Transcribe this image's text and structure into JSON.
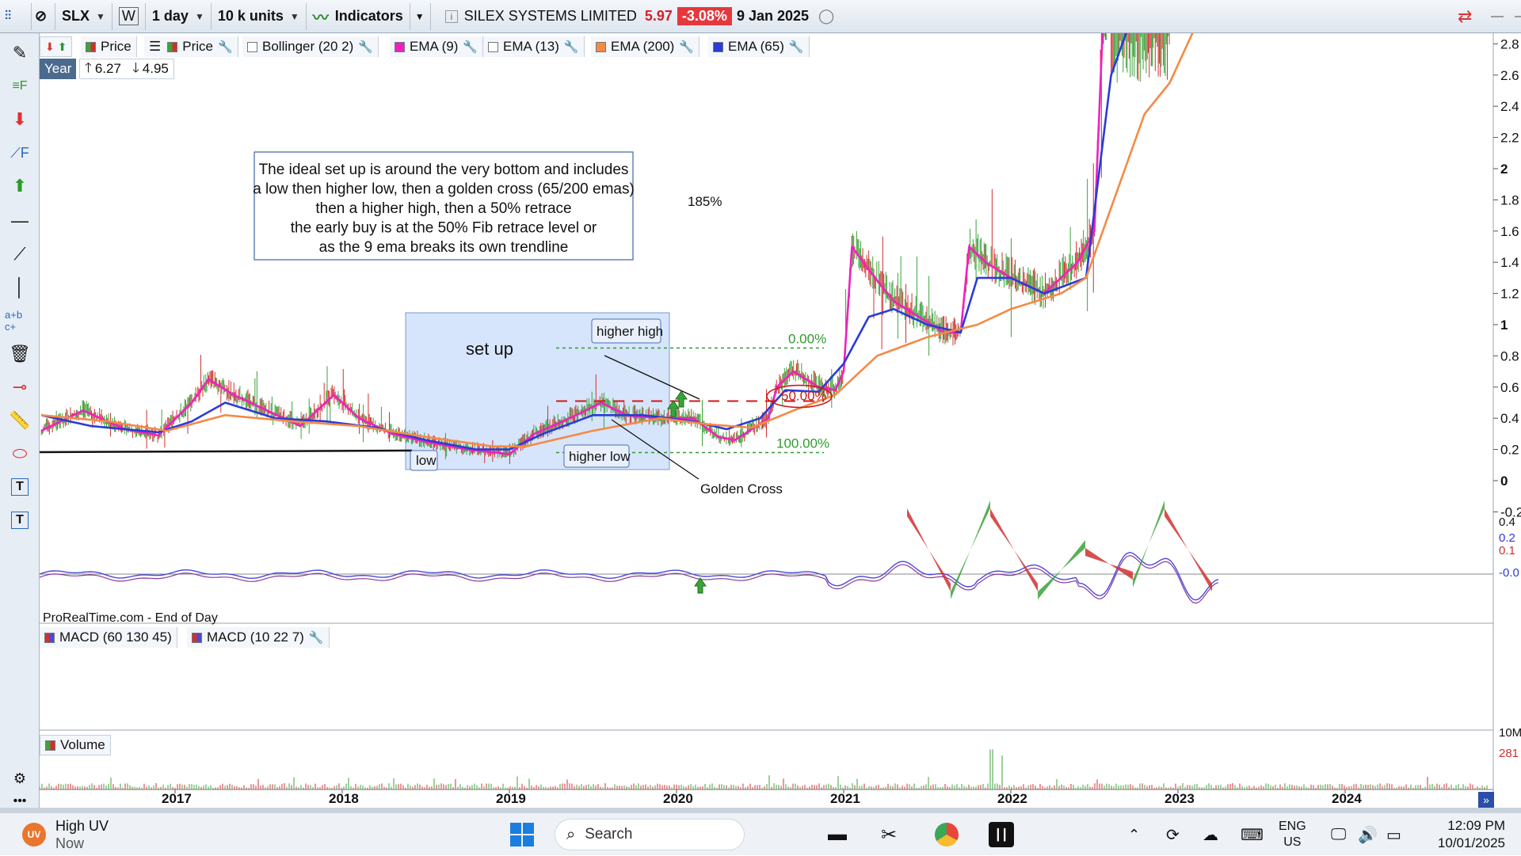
{
  "toolbar": {
    "symbol": "SLX",
    "period_w": "W",
    "interval": "1 day",
    "units": "10 k units",
    "indicators_label": "Indicators",
    "instrument_name": "SILEX SYSTEMS LIMITED",
    "last_price": "5.97",
    "change": "-3.08%",
    "date": "9 Jan 2025"
  },
  "legend": {
    "price1": "Price",
    "price2": "Price",
    "bollinger": "Bollinger (20 2)",
    "ema9": "EMA (9)",
    "ema13": "EMA (13)",
    "ema200": "EMA (200)",
    "ema65": "EMA (65)",
    "range_label": "Year",
    "range_high": "6.27",
    "range_low": "4.95",
    "source": "ProRealTime.com - End of Day",
    "macd1": "MACD (60 130 45)",
    "macd2": "MACD (10 22 7)",
    "volume": "Volume"
  },
  "colors": {
    "ema9": "#f020c0",
    "ema65": "#2a3bd8",
    "ema200": "#f58a45",
    "price_up": "#3aa33a",
    "price_down": "#d03030",
    "setup_box": "#cfe0fa",
    "fib_green": "#2f9a2f",
    "fib_red": "#d01818"
  },
  "annotations": {
    "note_lines": [
      "The ideal set up is around the very bottom and includes",
      "a low then higher low, then a golden cross (65/200 emas)",
      "then a higher high, then a 50% retrace",
      "the early buy is at the 50% Fib retrace level or",
      "as the 9 ema breaks its own trendline"
    ],
    "setup": "set up",
    "low": "low",
    "higher_low": "higher low",
    "higher_high": "higher high",
    "golden_cross": "Golden Cross",
    "gain": "185%",
    "fib_0": "0.00%",
    "fib_50": "50.00%",
    "fib_100": "100.00%"
  },
  "chart_data": {
    "type": "line",
    "x_axis": [
      "2017",
      "2018",
      "2019",
      "2020",
      "2021",
      "2022",
      "2023",
      "2024"
    ],
    "y_ticks": [
      "2.8",
      "2.6",
      "2.4",
      "2.2",
      "2",
      "1.8",
      "1.6",
      "1.4",
      "1.2",
      "1",
      "0.8",
      "0.6",
      "0.4",
      "0.2",
      "0",
      "-0.2"
    ],
    "ylim": [
      -0.2,
      2.9
    ],
    "fib_levels": {
      "0%": 0.85,
      "50%": 0.51,
      "100%": 0.18
    },
    "series": [
      {
        "name": "EMA (9)",
        "points": [
          [
            2016.2,
            0.32
          ],
          [
            2016.45,
            0.45
          ],
          [
            2016.7,
            0.33
          ],
          [
            2016.9,
            0.29
          ],
          [
            2017.1,
            0.5
          ],
          [
            2017.2,
            0.65
          ],
          [
            2017.35,
            0.55
          ],
          [
            2017.55,
            0.45
          ],
          [
            2017.75,
            0.35
          ],
          [
            2017.95,
            0.55
          ],
          [
            2018.1,
            0.4
          ],
          [
            2018.3,
            0.3
          ],
          [
            2018.5,
            0.25
          ],
          [
            2018.75,
            0.2
          ],
          [
            2019.0,
            0.17
          ],
          [
            2019.15,
            0.3
          ],
          [
            2019.4,
            0.42
          ],
          [
            2019.55,
            0.5
          ],
          [
            2019.7,
            0.42
          ],
          [
            2019.9,
            0.4
          ],
          [
            2020.1,
            0.4
          ],
          [
            2020.25,
            0.28
          ],
          [
            2020.35,
            0.26
          ],
          [
            2020.55,
            0.4
          ],
          [
            2020.6,
            0.6
          ],
          [
            2020.7,
            0.7
          ],
          [
            2020.85,
            0.6
          ],
          [
            2020.95,
            0.58
          ],
          [
            2021.0,
            0.7
          ],
          [
            2021.05,
            1.5
          ],
          [
            2021.15,
            1.35
          ],
          [
            2021.3,
            1.15
          ],
          [
            2021.45,
            1.05
          ],
          [
            2021.6,
            0.95
          ],
          [
            2021.7,
            0.95
          ],
          [
            2021.75,
            1.5
          ],
          [
            2021.85,
            1.4
          ],
          [
            2022.0,
            1.3
          ],
          [
            2022.2,
            1.2
          ],
          [
            2022.3,
            1.3
          ],
          [
            2022.4,
            1.4
          ],
          [
            2022.5,
            1.6
          ],
          [
            2022.55,
            2.9
          ]
        ]
      },
      {
        "name": "EMA (65)",
        "points": [
          [
            2016.2,
            0.42
          ],
          [
            2016.5,
            0.35
          ],
          [
            2016.9,
            0.31
          ],
          [
            2017.1,
            0.38
          ],
          [
            2017.3,
            0.5
          ],
          [
            2017.6,
            0.4
          ],
          [
            2017.9,
            0.38
          ],
          [
            2018.2,
            0.34
          ],
          [
            2018.5,
            0.26
          ],
          [
            2018.8,
            0.2
          ],
          [
            2019.0,
            0.2
          ],
          [
            2019.2,
            0.3
          ],
          [
            2019.5,
            0.42
          ],
          [
            2019.8,
            0.42
          ],
          [
            2020.1,
            0.38
          ],
          [
            2020.3,
            0.33
          ],
          [
            2020.5,
            0.4
          ],
          [
            2020.65,
            0.58
          ],
          [
            2020.85,
            0.57
          ],
          [
            2021.0,
            0.75
          ],
          [
            2021.15,
            1.05
          ],
          [
            2021.3,
            1.1
          ],
          [
            2021.5,
            1.0
          ],
          [
            2021.7,
            0.95
          ],
          [
            2021.8,
            1.3
          ],
          [
            2022.0,
            1.3
          ],
          [
            2022.2,
            1.2
          ],
          [
            2022.45,
            1.3
          ],
          [
            2022.6,
            2.6
          ],
          [
            2022.7,
            2.9
          ]
        ]
      },
      {
        "name": "EMA (200)",
        "points": [
          [
            2016.2,
            0.42
          ],
          [
            2016.6,
            0.38
          ],
          [
            2016.95,
            0.32
          ],
          [
            2017.3,
            0.42
          ],
          [
            2017.7,
            0.38
          ],
          [
            2018.1,
            0.35
          ],
          [
            2018.5,
            0.28
          ],
          [
            2018.9,
            0.22
          ],
          [
            2019.1,
            0.22
          ],
          [
            2019.5,
            0.32
          ],
          [
            2019.9,
            0.4
          ],
          [
            2020.2,
            0.36
          ],
          [
            2020.45,
            0.34
          ],
          [
            2020.7,
            0.45
          ],
          [
            2020.95,
            0.55
          ],
          [
            2021.2,
            0.8
          ],
          [
            2021.5,
            0.92
          ],
          [
            2021.8,
            1.0
          ],
          [
            2022.0,
            1.1
          ],
          [
            2022.3,
            1.2
          ],
          [
            2022.45,
            1.3
          ],
          [
            2022.6,
            1.75
          ],
          [
            2022.8,
            2.35
          ],
          [
            2022.95,
            2.55
          ],
          [
            2023.1,
            2.9
          ]
        ]
      }
    ]
  }
}
